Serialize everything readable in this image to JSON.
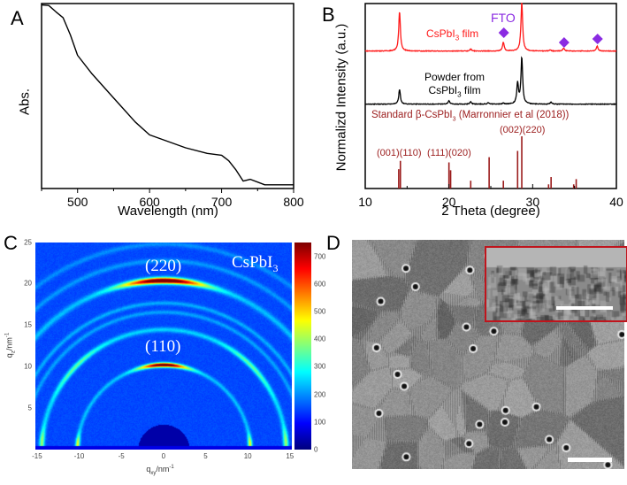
{
  "panels": {
    "a": "A",
    "b": "B",
    "c": "C",
    "d": "D"
  },
  "colors": {
    "film": "#ff1a1a",
    "powder": "#000000",
    "standard": "#9b1c1c",
    "fto": "#8a2be2"
  },
  "chart_data": [
    {
      "type": "line",
      "panel": "A",
      "xlabel": "Wavelength (nm)",
      "ylabel": "Abs.",
      "xlim": [
        450,
        800
      ],
      "xticks": [
        "500",
        "600",
        "700",
        "800"
      ],
      "x": [
        450,
        460,
        470,
        480,
        490,
        500,
        520,
        550,
        580,
        600,
        650,
        680,
        700,
        710,
        720,
        730,
        740,
        760,
        800
      ],
      "y": [
        0.99,
        0.98,
        0.96,
        0.92,
        0.83,
        0.72,
        0.62,
        0.49,
        0.36,
        0.29,
        0.22,
        0.19,
        0.18,
        0.15,
        0.1,
        0.04,
        0.05,
        0.02,
        0.02
      ]
    },
    {
      "type": "line",
      "panel": "B",
      "xlabel": "2 Theta (degree)",
      "ylabel": "Normalizd Intensity (a.u.)",
      "xlim": [
        10,
        40
      ],
      "xticks": [
        "10",
        "20",
        "30",
        "40"
      ],
      "series": [
        {
          "name": "CsPbI3 film",
          "name_main": "CsPbI",
          "name_sub": "3",
          "name_tail": " film",
          "peaks_2theta": [
            14.1,
            22.6,
            26.5,
            28.7,
            32.1,
            33.7,
            37.7
          ],
          "heights": [
            0.8,
            0.04,
            0.18,
            1.0,
            0.02,
            0.06,
            0.1
          ]
        },
        {
          "name": "Powder from CsPbI3 film",
          "line1": "Powder from",
          "line2_main": "CsPbI",
          "line2_sub": "3",
          "line2_tail": " film",
          "peaks_2theta": [
            14.1,
            20.0,
            22.6,
            24.7,
            26.5,
            28.2,
            28.7,
            32.2
          ],
          "heights": [
            0.3,
            0.07,
            0.05,
            0.03,
            0.02,
            0.42,
            0.95,
            0.04
          ]
        },
        {
          "name": "Standard β-CsPbI3 (Marronnier et al (2018))",
          "label_main": "Standard β-CsPbI",
          "label_sub": "3",
          "label_tail": " (Marronnier et al (2018))",
          "type": "stick",
          "sticks_2theta": [
            14.0,
            14.2,
            20.0,
            20.2,
            22.6,
            24.8,
            26.5,
            28.2,
            28.7,
            31.9,
            32.2,
            34.9,
            35.2
          ],
          "heights": [
            0.37,
            0.53,
            0.5,
            0.35,
            0.15,
            0.6,
            0.15,
            0.72,
            1.0,
            0.08,
            0.22,
            0.08,
            0.18
          ]
        }
      ],
      "annotations": {
        "fto": "FTO",
        "fto_marker_2theta": [
          26.5,
          33.7,
          37.7
        ],
        "hkl_1": "(001)(110)",
        "hkl_2": "(111)(020)",
        "hkl_3": "(002)(220)"
      }
    },
    {
      "type": "heatmap",
      "panel": "C",
      "xlabel_main": "q",
      "xlabel_sub": "xy",
      "xlabel_tail": "/nm",
      "xlabel_sup": "-1",
      "ylabel_main": "q",
      "ylabel_sub": "z",
      "ylabel_tail": "/nm",
      "ylabel_sup": "-1",
      "xlim": [
        -15,
        15.5
      ],
      "ylim": [
        0,
        25
      ],
      "xticks": [
        "-15",
        "-10",
        "-5",
        "0",
        "5",
        "10",
        "15"
      ],
      "yticks": [
        "25",
        "20",
        "15",
        "10",
        "5"
      ],
      "title_main": "CsPbI",
      "title_sub": "3",
      "peak_labels": [
        "(220)",
        "(110)"
      ],
      "ring_q": [
        10.2,
        14.5,
        16.6,
        17.7,
        20.4,
        22.8,
        24.8
      ],
      "colorbar": {
        "range": [
          0,
          750
        ],
        "ticks": [
          "0",
          "100",
          "200",
          "300",
          "400",
          "500",
          "600",
          "700"
        ],
        "colormap": "jet"
      }
    }
  ]
}
